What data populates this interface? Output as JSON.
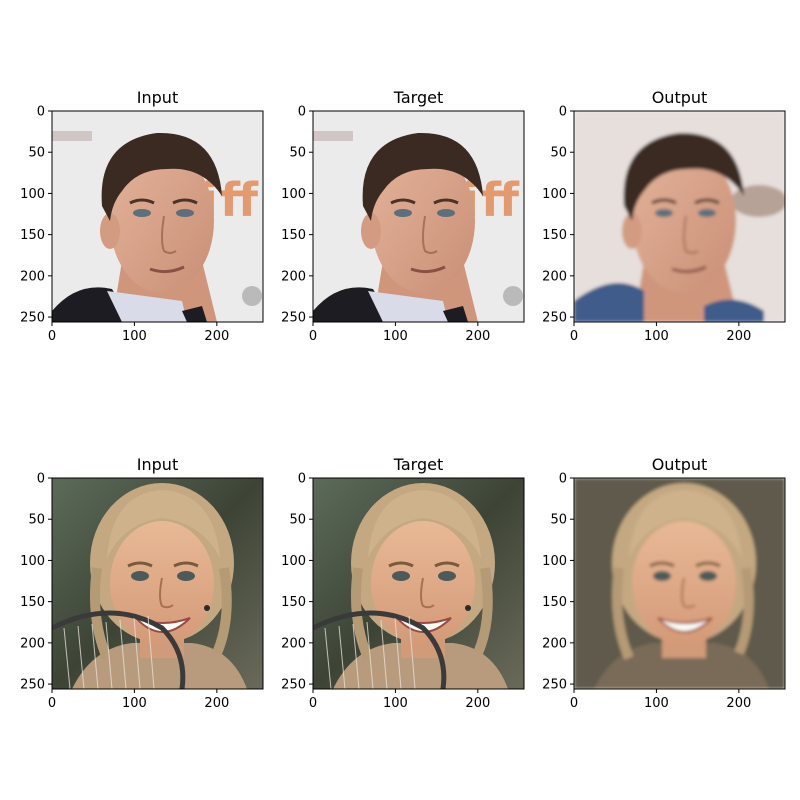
{
  "figure": {
    "panels": [
      {
        "title": "Input",
        "subject": "middle-aged-man-dark-hair-blazer",
        "variant": "sharp"
      },
      {
        "title": "Target",
        "subject": "middle-aged-man-dark-hair-blazer",
        "variant": "sharp"
      },
      {
        "title": "Output",
        "subject": "middle-aged-man-dark-hair-blazer",
        "variant": "generated-smooth"
      },
      {
        "title": "Input",
        "subject": "smiling-woman-braided-blonde-hair-tennis-racket",
        "variant": "sharp"
      },
      {
        "title": "Target",
        "subject": "smiling-woman-braided-blonde-hair-tennis-racket",
        "variant": "sharp"
      },
      {
        "title": "Output",
        "subject": "smiling-woman-braided-blonde-hair-tennis-racket",
        "variant": "generated-smooth"
      }
    ],
    "x_ticks": [
      0,
      100,
      200
    ],
    "y_ticks": [
      0,
      50,
      100,
      150,
      200,
      250
    ],
    "image_extent": [
      0,
      256
    ]
  }
}
